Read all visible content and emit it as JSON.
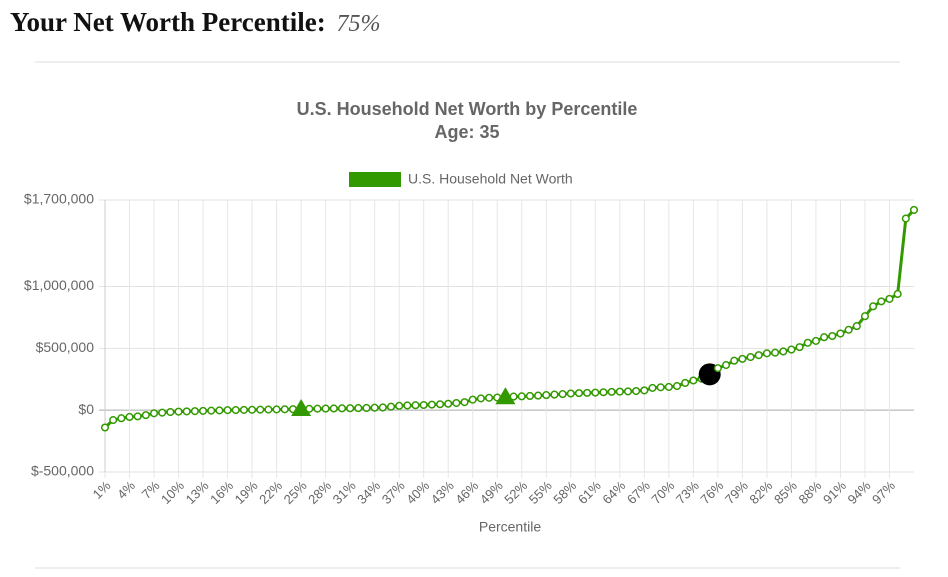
{
  "header": {
    "title": "Your Net Worth Percentile:",
    "value": "75%"
  },
  "chart_data": {
    "type": "line",
    "title": "U.S. Household Net Worth by Percentile",
    "subtitle": "Age: 35",
    "x_label": "Percentile",
    "categories": [
      "1%",
      null,
      null,
      "4%",
      null,
      null,
      "7%",
      null,
      null,
      "10%",
      null,
      null,
      "13%",
      null,
      null,
      "16%",
      null,
      null,
      "19%",
      null,
      null,
      "22%",
      null,
      null,
      "25%",
      null,
      null,
      "28%",
      null,
      null,
      "31%",
      null,
      null,
      "34%",
      null,
      null,
      "37%",
      null,
      null,
      "40%",
      null,
      null,
      "43%",
      null,
      null,
      "46%",
      null,
      null,
      "49%",
      null,
      null,
      "52%",
      null,
      null,
      "55%",
      null,
      null,
      "58%",
      null,
      null,
      "61%",
      null,
      null,
      "64%",
      null,
      null,
      "67%",
      null,
      null,
      "70%",
      null,
      null,
      "73%",
      null,
      null,
      "76%",
      null,
      null,
      "79%",
      null,
      null,
      "82%",
      null,
      null,
      "85%",
      null,
      null,
      "88%",
      null,
      null,
      "91%",
      null,
      null,
      "94%",
      null,
      null,
      "97%",
      null,
      null,
      null
    ],
    "series": [
      {
        "name": "U.S. Household Net Worth",
        "color": "#339900",
        "values": [
          -140000,
          -80000,
          -65000,
          -55000,
          -50000,
          -40000,
          -25000,
          -20000,
          -15000,
          -12000,
          -10000,
          -8000,
          -6000,
          -4000,
          -2000,
          0,
          1000,
          2000,
          3000,
          4000,
          5000,
          6000,
          7000,
          8000,
          10000,
          11000,
          12000,
          13000,
          14000,
          15000,
          16000,
          17000,
          18000,
          20000,
          22000,
          28000,
          35000,
          38000,
          40000,
          42000,
          45000,
          48000,
          52000,
          58000,
          65000,
          85000,
          95000,
          100000,
          102000,
          105000,
          110000,
          112000,
          115000,
          118000,
          122000,
          126000,
          130000,
          135000,
          138000,
          140000,
          142000,
          145000,
          148000,
          150000,
          152000,
          155000,
          160000,
          180000,
          185000,
          188000,
          195000,
          220000,
          240000,
          255000,
          290000,
          340000,
          365000,
          400000,
          415000,
          430000,
          445000,
          460000,
          465000,
          475000,
          490000,
          510000,
          545000,
          560000,
          590000,
          600000,
          620000,
          650000,
          680000,
          760000,
          840000,
          880000,
          900000,
          940000,
          1550000,
          1620000
        ]
      }
    ],
    "highlight_points": [
      {
        "index": 24,
        "shape": "triangle",
        "color": "#339900"
      },
      {
        "index": 49,
        "shape": "triangle",
        "color": "#339900"
      },
      {
        "index": 74,
        "shape": "circle",
        "color": "#000000"
      }
    ],
    "ylim": [
      -500000,
      1700000
    ],
    "yticks": [
      {
        "value": -500000,
        "label": "$-500,000"
      },
      {
        "value": 0,
        "label": "$0"
      },
      {
        "value": 500000,
        "label": "$500,000"
      },
      {
        "value": 1000000,
        "label": "$1,000,000"
      },
      {
        "value": 1700000,
        "label": "$1,700,000"
      }
    ],
    "grid": true
  }
}
